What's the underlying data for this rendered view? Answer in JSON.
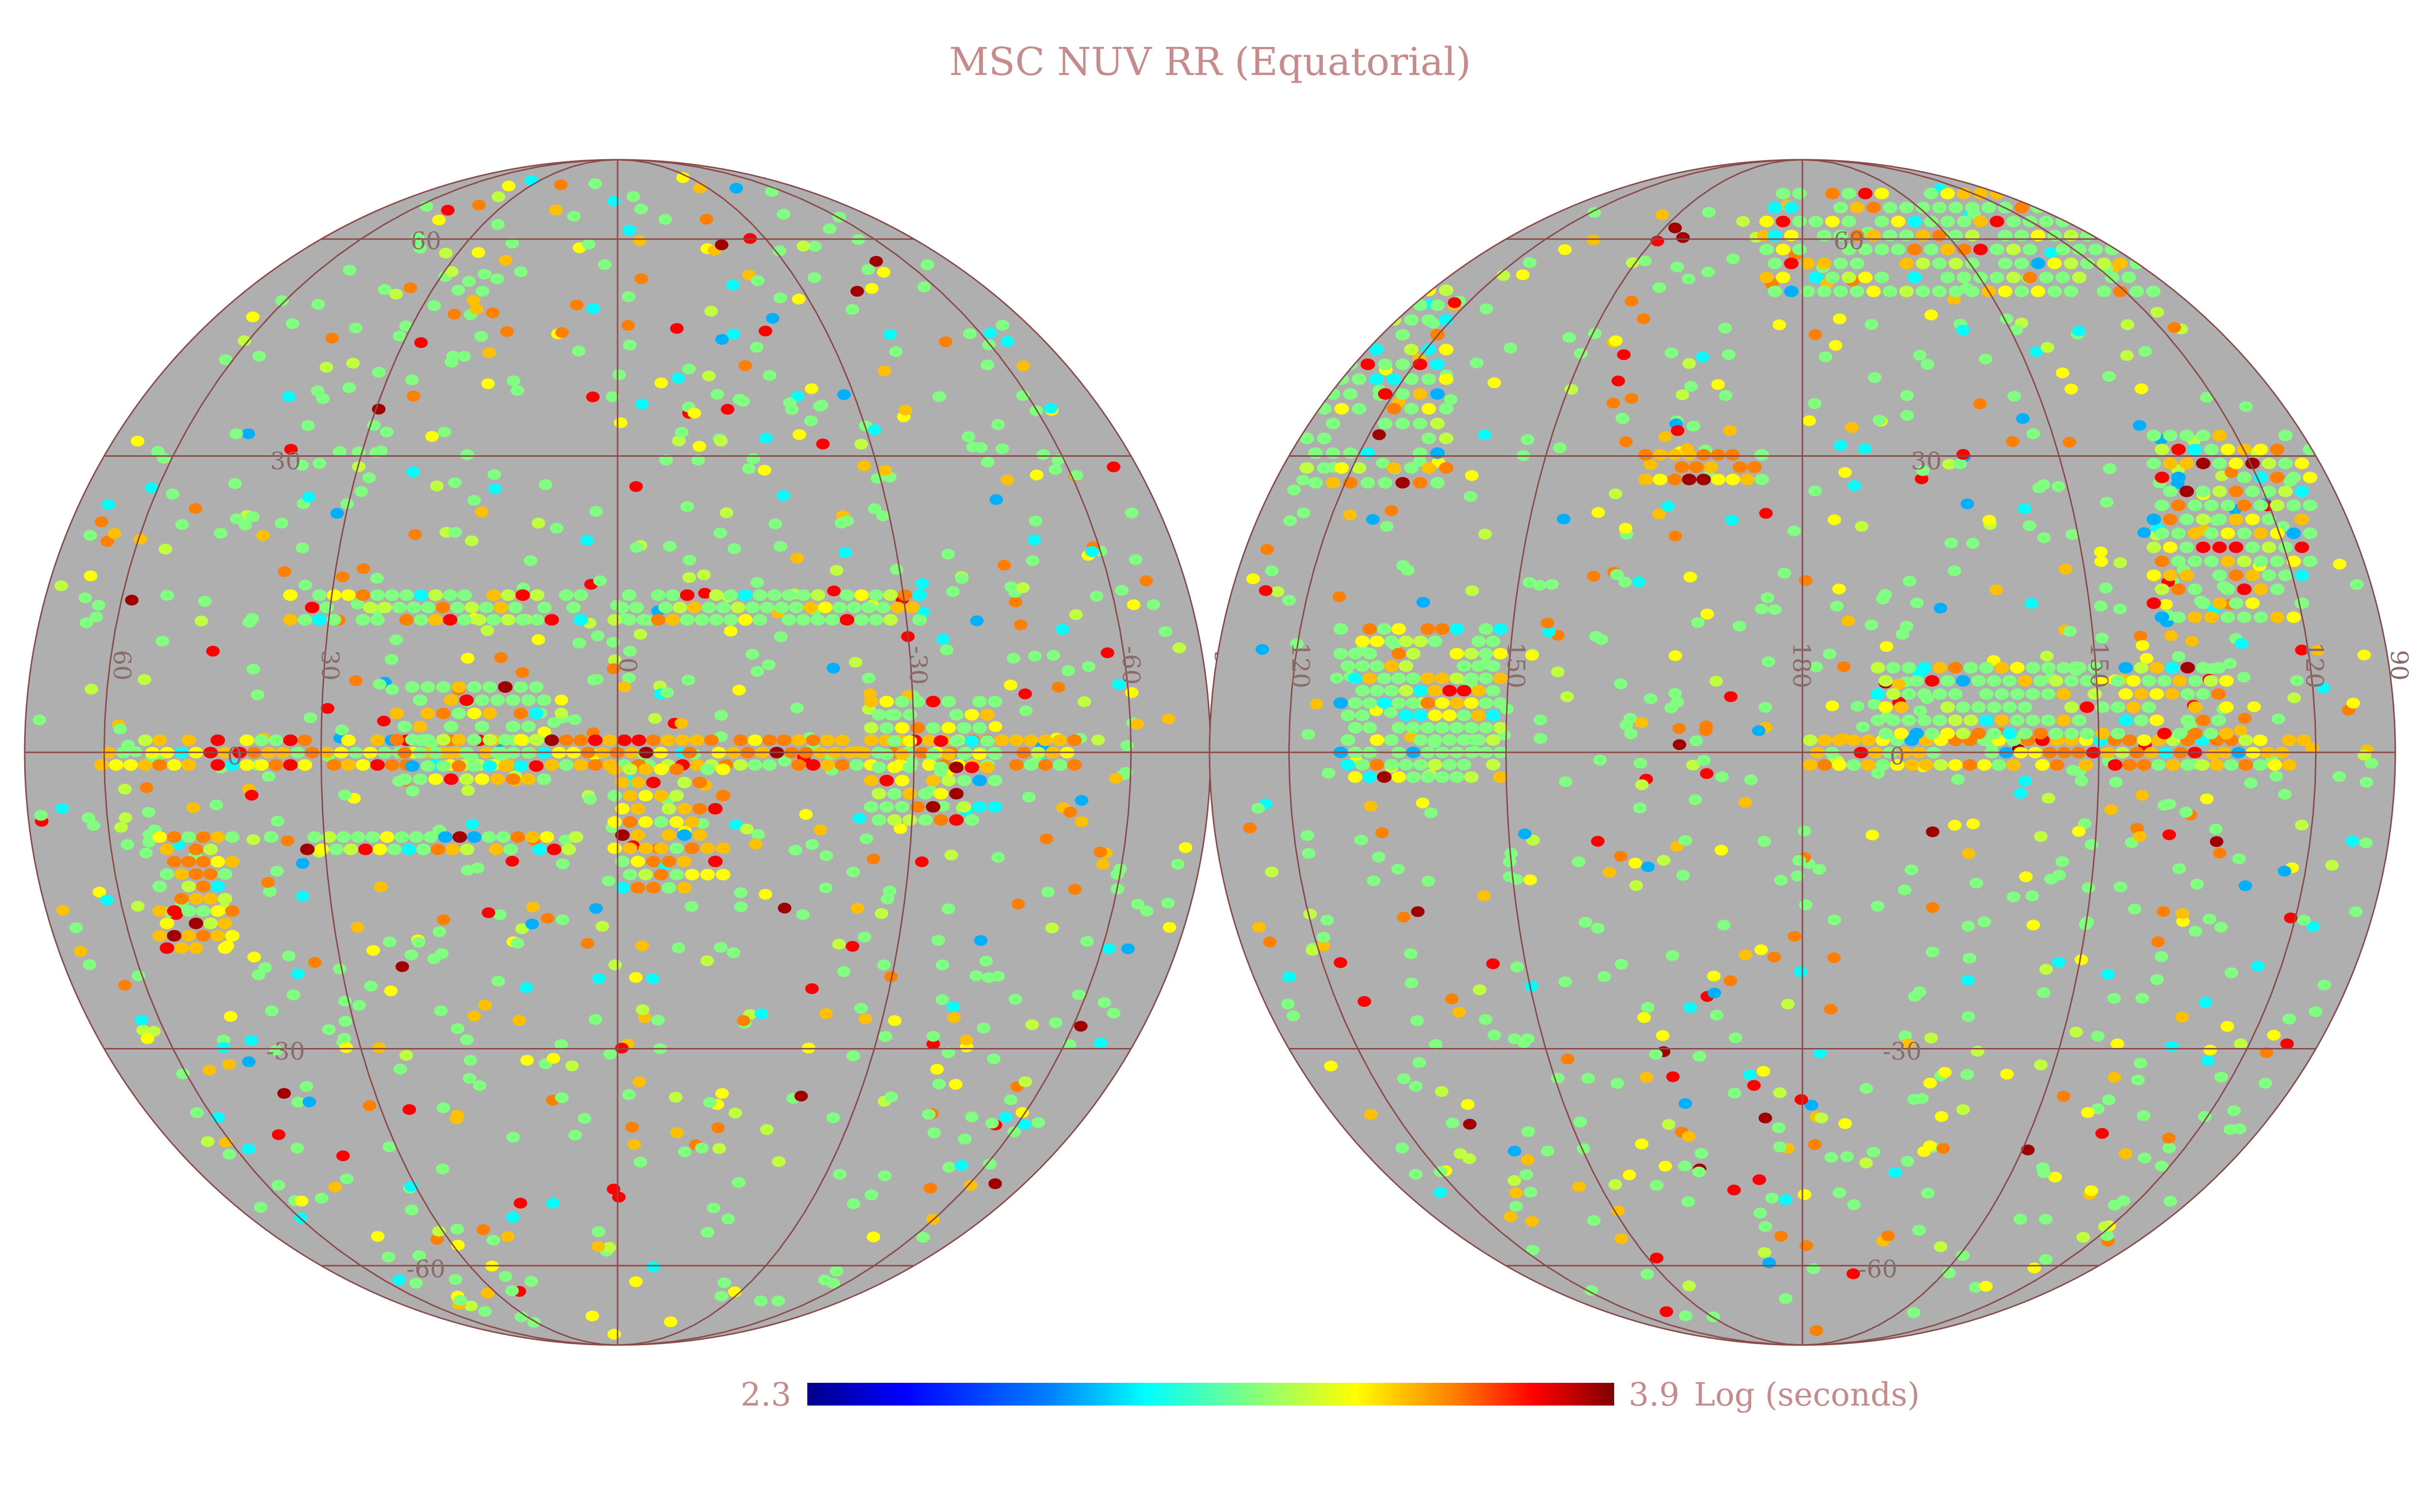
{
  "title": "MSC NUV RR (Equatorial)",
  "colorbar": {
    "min_label": "2.3",
    "max_label": "3.9",
    "unit": "Log (seconds)",
    "colors": [
      "#00008b",
      "#0000ff",
      "#0080ff",
      "#00ffff",
      "#80ff80",
      "#ffff00",
      "#ff8000",
      "#ff0000",
      "#800000"
    ]
  },
  "colors": {
    "sphere_fill": "#afafaf",
    "grid_line": "#8b4a4a",
    "label_color": "#8a6a6a"
  },
  "hemispheres": [
    {
      "name": "left",
      "dec_labels": [
        "60",
        "30",
        "0",
        "-30",
        "-60"
      ],
      "ra_labels": [
        "60",
        "30",
        "0",
        "-30",
        "-60",
        "90"
      ]
    },
    {
      "name": "right",
      "dec_labels": [
        "60",
        "30",
        "0",
        "-30",
        "-60"
      ],
      "ra_labels": [
        "120",
        "150",
        "180",
        "150",
        "120",
        "90"
      ]
    }
  ]
}
